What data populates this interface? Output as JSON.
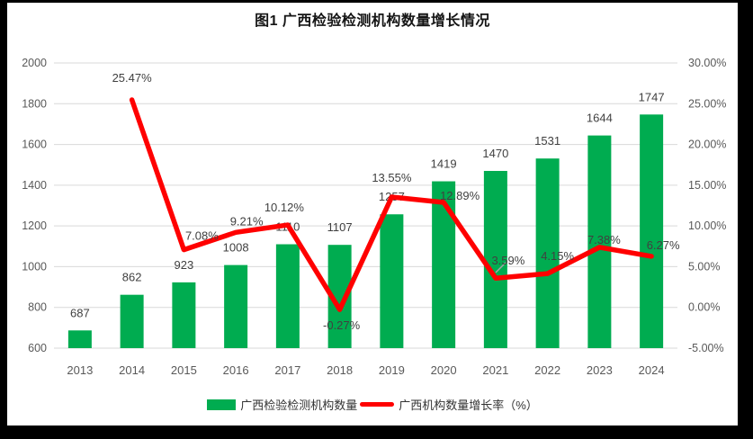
{
  "chart_data": {
    "type": "combo-bar-line",
    "title": "图1 广西检验检测机构数量增长情况",
    "categories": [
      "2013",
      "2014",
      "2015",
      "2016",
      "2017",
      "2018",
      "2019",
      "2020",
      "2021",
      "2022",
      "2023",
      "2024"
    ],
    "series": [
      {
        "name": "广西检验检测机构数量",
        "type": "bar",
        "axis": "left",
        "color": "#00AC50",
        "values": [
          687,
          862,
          923,
          1008,
          1110,
          1107,
          1257,
          1419,
          1470,
          1531,
          1644,
          1747
        ],
        "value_labels": [
          "687",
          "862",
          "923",
          "1008",
          "1110",
          "1107",
          "1257",
          "1419",
          "1470",
          "1531",
          "1644",
          "1747"
        ]
      },
      {
        "name": "广西机构数量增长率（%）",
        "type": "line",
        "axis": "right",
        "color": "#FF0000",
        "values": [
          null,
          25.47,
          7.08,
          9.21,
          10.12,
          -0.27,
          13.55,
          12.89,
          3.59,
          4.15,
          7.38,
          6.27
        ],
        "value_labels": [
          null,
          "25.47%",
          "7.08%",
          "9.21%",
          "10.12%",
          "-0.27%",
          "13.55%",
          "12.89%",
          "3.59%",
          "4.15%",
          "7.38%",
          "6.27%"
        ]
      }
    ],
    "left_axis": {
      "min": 600,
      "max": 2000,
      "step": 200,
      "tick_labels": [
        "600",
        "800",
        "1000",
        "1200",
        "1400",
        "1600",
        "1800",
        "2000"
      ]
    },
    "right_axis": {
      "min": -5,
      "max": 30,
      "step": 5,
      "tick_labels": [
        "-5.00%",
        "0.00%",
        "5.00%",
        "10.00%",
        "15.00%",
        "20.00%",
        "25.00%",
        "30.00%"
      ]
    },
    "grid": true,
    "legend_position": "bottom",
    "colors": {
      "bar": "#00AC50",
      "line": "#FF0000",
      "grid": "#D9D9D9",
      "tick_text": "#595959",
      "data_label": "#404040",
      "leader": "#A6A6A6",
      "frame": "#000000",
      "background": "#FFFFFF"
    }
  }
}
